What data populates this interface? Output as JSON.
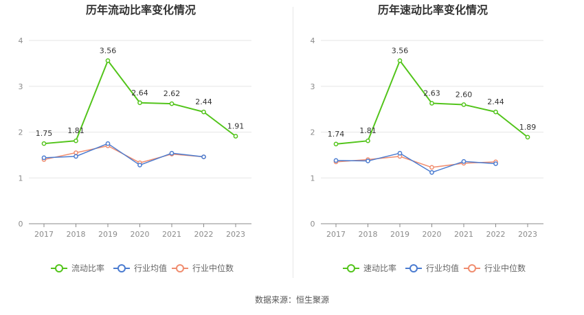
{
  "colors": {
    "primary": "#52c41a",
    "industry_avg": "#4a7bd0",
    "industry_median": "#f08c6e",
    "grid": "#e6e6e6",
    "axis": "#888888"
  },
  "footer": {
    "source": "数据来源：恒生聚源"
  },
  "chart_data": [
    {
      "type": "line",
      "title": "历年流动比率变化情况",
      "categories": [
        "2017",
        "2018",
        "2019",
        "2020",
        "2021",
        "2022",
        "2023"
      ],
      "y_ticks": [
        "0",
        "1",
        "2",
        "3",
        "4"
      ],
      "ylim": [
        0,
        4
      ],
      "grid": true,
      "legend_position": "bottom",
      "series": [
        {
          "name": "流动比率",
          "values": [
            1.75,
            1.81,
            3.56,
            2.64,
            2.62,
            2.44,
            1.91
          ],
          "labels": [
            "1.75",
            "1.81",
            "3.56",
            "2.64",
            "2.62",
            "2.44",
            "1.91"
          ]
        },
        {
          "name": "行业均值",
          "values": [
            1.44,
            1.47,
            1.75,
            1.28,
            1.54,
            1.46,
            null
          ]
        },
        {
          "name": "行业中位数",
          "values": [
            1.4,
            1.55,
            1.7,
            1.33,
            1.52,
            1.46,
            null
          ]
        }
      ]
    },
    {
      "type": "line",
      "title": "历年速动比率变化情况",
      "categories": [
        "2017",
        "2018",
        "2019",
        "2020",
        "2021",
        "2022",
        "2023"
      ],
      "y_ticks": [
        "0",
        "1",
        "2",
        "3",
        "4"
      ],
      "ylim": [
        0,
        4
      ],
      "grid": true,
      "legend_position": "bottom",
      "series": [
        {
          "name": "速动比率",
          "values": [
            1.74,
            1.81,
            3.56,
            2.63,
            2.6,
            2.44,
            1.89
          ],
          "labels": [
            "1.74",
            "1.81",
            "3.56",
            "2.63",
            "2.60",
            "2.44",
            "1.89"
          ]
        },
        {
          "name": "行业均值",
          "values": [
            1.38,
            1.37,
            1.54,
            1.12,
            1.36,
            1.31,
            null
          ]
        },
        {
          "name": "行业中位数",
          "values": [
            1.35,
            1.4,
            1.47,
            1.23,
            1.32,
            1.35,
            null
          ]
        }
      ]
    }
  ]
}
